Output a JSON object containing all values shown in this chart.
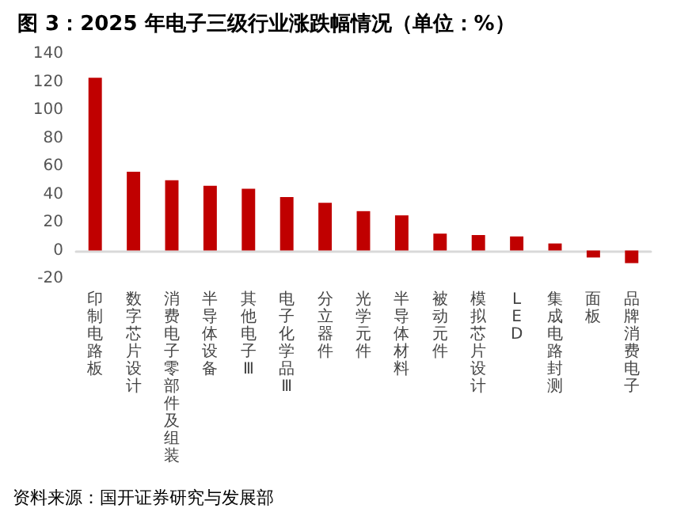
{
  "chart_data": {
    "type": "bar",
    "title": "图 3：2025 年电子三级行业涨跌幅情况（单位：%）",
    "categories": [
      "印制电路板",
      "数字芯片设计",
      "消费电子零部件及组装",
      "半导体设备",
      "其他电子Ⅲ",
      "电子化学品Ⅲ",
      "分立器件",
      "光学元件",
      "半导体材料",
      "被动元件",
      "模拟芯片设计",
      "LED",
      "集成电路封测",
      "面板",
      "品牌消费电子"
    ],
    "values": [
      123,
      56,
      50,
      46,
      44,
      38,
      34,
      28,
      25,
      12,
      11,
      10,
      5,
      -5,
      -9
    ],
    "color": "#c00000",
    "ylim": [
      -20,
      140
    ],
    "yticks": [
      -20,
      0,
      20,
      40,
      60,
      80,
      100,
      120,
      140
    ],
    "grid": false,
    "annotations": [
      "资料来源：国开证券研究与发展部"
    ]
  }
}
